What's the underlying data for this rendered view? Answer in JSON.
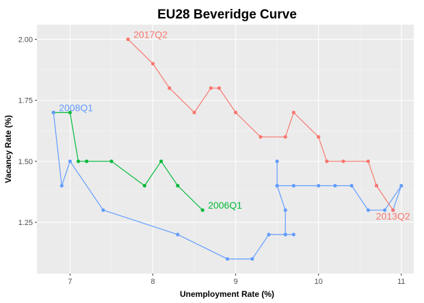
{
  "chart_data": {
    "type": "line",
    "title": "EU28 Beveridge Curve",
    "xlabel": "Unemployment Rate (%)",
    "ylabel": "Vacancy Rate (%)",
    "xlim": [
      6.6,
      11.15
    ],
    "ylim": [
      1.04,
      2.06
    ],
    "xticks": [
      7,
      8,
      9,
      10,
      11
    ],
    "yticks": [
      1.25,
      1.5,
      1.75,
      2.0
    ],
    "xtick_labels": [
      "7",
      "8",
      "9",
      "10",
      "11"
    ],
    "ytick_labels": [
      "1.25",
      "1.50",
      "1.75",
      "2.00"
    ],
    "grid": true,
    "legend": "none",
    "series": [
      {
        "color": "#00BA38",
        "points": [
          {
            "x": 8.6,
            "y": 1.3
          },
          {
            "x": 8.3,
            "y": 1.4
          },
          {
            "x": 8.1,
            "y": 1.5
          },
          {
            "x": 7.9,
            "y": 1.4
          },
          {
            "x": 7.5,
            "y": 1.5
          },
          {
            "x": 7.2,
            "y": 1.5
          },
          {
            "x": 7.1,
            "y": 1.5
          },
          {
            "x": 7.0,
            "y": 1.7
          },
          {
            "x": 6.8,
            "y": 1.7
          }
        ]
      },
      {
        "color": "#619CFF",
        "points": [
          {
            "x": 6.8,
            "y": 1.7
          },
          {
            "x": 6.9,
            "y": 1.4
          },
          {
            "x": 7.0,
            "y": 1.5
          },
          {
            "x": 7.4,
            "y": 1.3
          },
          {
            "x": 8.3,
            "y": 1.2
          },
          {
            "x": 8.9,
            "y": 1.1
          },
          {
            "x": 9.2,
            "y": 1.1
          },
          {
            "x": 9.4,
            "y": 1.2
          },
          {
            "x": 9.6,
            "y": 1.2
          },
          {
            "x": 9.7,
            "y": 1.2
          },
          {
            "x": 9.6,
            "y": 1.2
          },
          {
            "x": 9.6,
            "y": 1.3
          },
          {
            "x": 9.5,
            "y": 1.4
          },
          {
            "x": 9.5,
            "y": 1.5
          },
          {
            "x": 9.5,
            "y": 1.4
          },
          {
            "x": 9.7,
            "y": 1.4
          },
          {
            "x": 10.0,
            "y": 1.4
          },
          {
            "x": 10.2,
            "y": 1.4
          },
          {
            "x": 10.4,
            "y": 1.4
          },
          {
            "x": 10.6,
            "y": 1.3
          },
          {
            "x": 10.8,
            "y": 1.3
          },
          {
            "x": 11.0,
            "y": 1.4
          },
          {
            "x": 10.9,
            "y": 1.3
          }
        ]
      },
      {
        "color": "#F8766D",
        "points": [
          {
            "x": 10.9,
            "y": 1.3
          },
          {
            "x": 10.7,
            "y": 1.4
          },
          {
            "x": 10.6,
            "y": 1.5
          },
          {
            "x": 10.3,
            "y": 1.5
          },
          {
            "x": 10.1,
            "y": 1.5
          },
          {
            "x": 10.0,
            "y": 1.6
          },
          {
            "x": 9.7,
            "y": 1.7
          },
          {
            "x": 9.6,
            "y": 1.6
          },
          {
            "x": 9.3,
            "y": 1.6
          },
          {
            "x": 9.0,
            "y": 1.7
          },
          {
            "x": 8.8,
            "y": 1.8
          },
          {
            "x": 8.7,
            "y": 1.8
          },
          {
            "x": 8.5,
            "y": 1.7
          },
          {
            "x": 8.2,
            "y": 1.8
          },
          {
            "x": 8.0,
            "y": 1.9
          },
          {
            "x": 7.7,
            "y": 2.0
          }
        ]
      }
    ],
    "annotations": [
      {
        "text": "2017Q2",
        "x": 7.7,
        "y": 2.0,
        "color": "#F8766D"
      },
      {
        "text": "2008Q1",
        "x": 6.8,
        "y": 1.7,
        "color": "#619CFF"
      },
      {
        "text": "2006Q1",
        "x": 8.6,
        "y": 1.3,
        "color": "#00BA38"
      },
      {
        "text": "2013Q2",
        "x": 10.9,
        "y": 1.3,
        "color": "#F8766D"
      }
    ]
  }
}
